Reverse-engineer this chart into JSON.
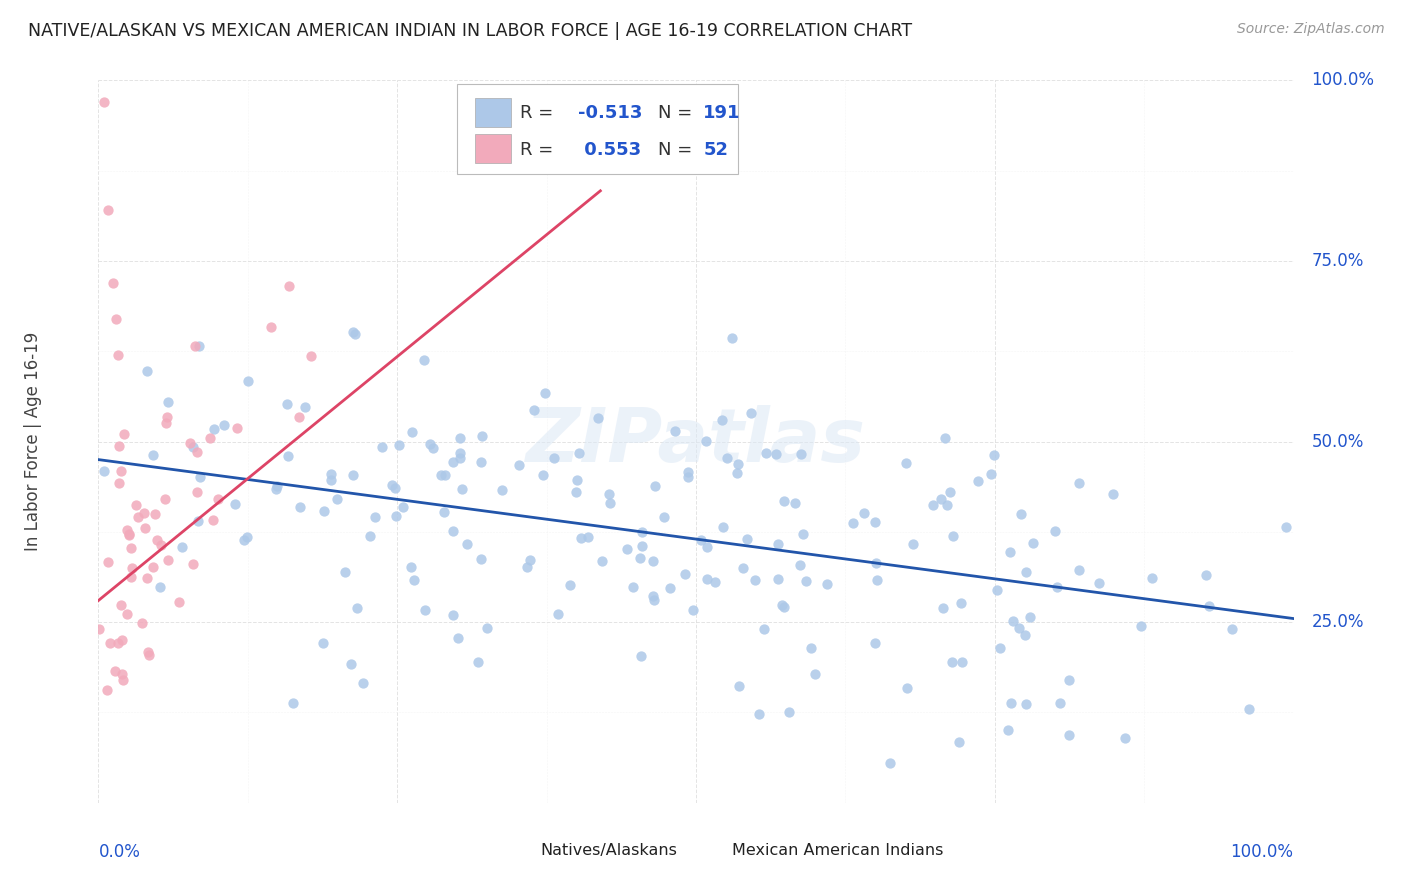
{
  "title": "NATIVE/ALASKAN VS MEXICAN AMERICAN INDIAN IN LABOR FORCE | AGE 16-19 CORRELATION CHART",
  "source": "Source: ZipAtlas.com",
  "ylabel": "In Labor Force | Age 16-19",
  "legend_label_blue": "Natives/Alaskans",
  "legend_label_pink": "Mexican American Indians",
  "blue_color": "#adc8e8",
  "pink_color": "#f2aabb",
  "blue_line_color": "#2255aa",
  "pink_line_color": "#dd4466",
  "text_blue": "#2255cc",
  "watermark": "ZIPatlas",
  "blue_r": -0.513,
  "pink_r": 0.553,
  "blue_n": 191,
  "pink_n": 52,
  "blue_seed": 7,
  "pink_seed": 13,
  "grid_color": "#dddddd",
  "title_color": "#222222",
  "source_color": "#999999",
  "ylabel_color": "#444444"
}
